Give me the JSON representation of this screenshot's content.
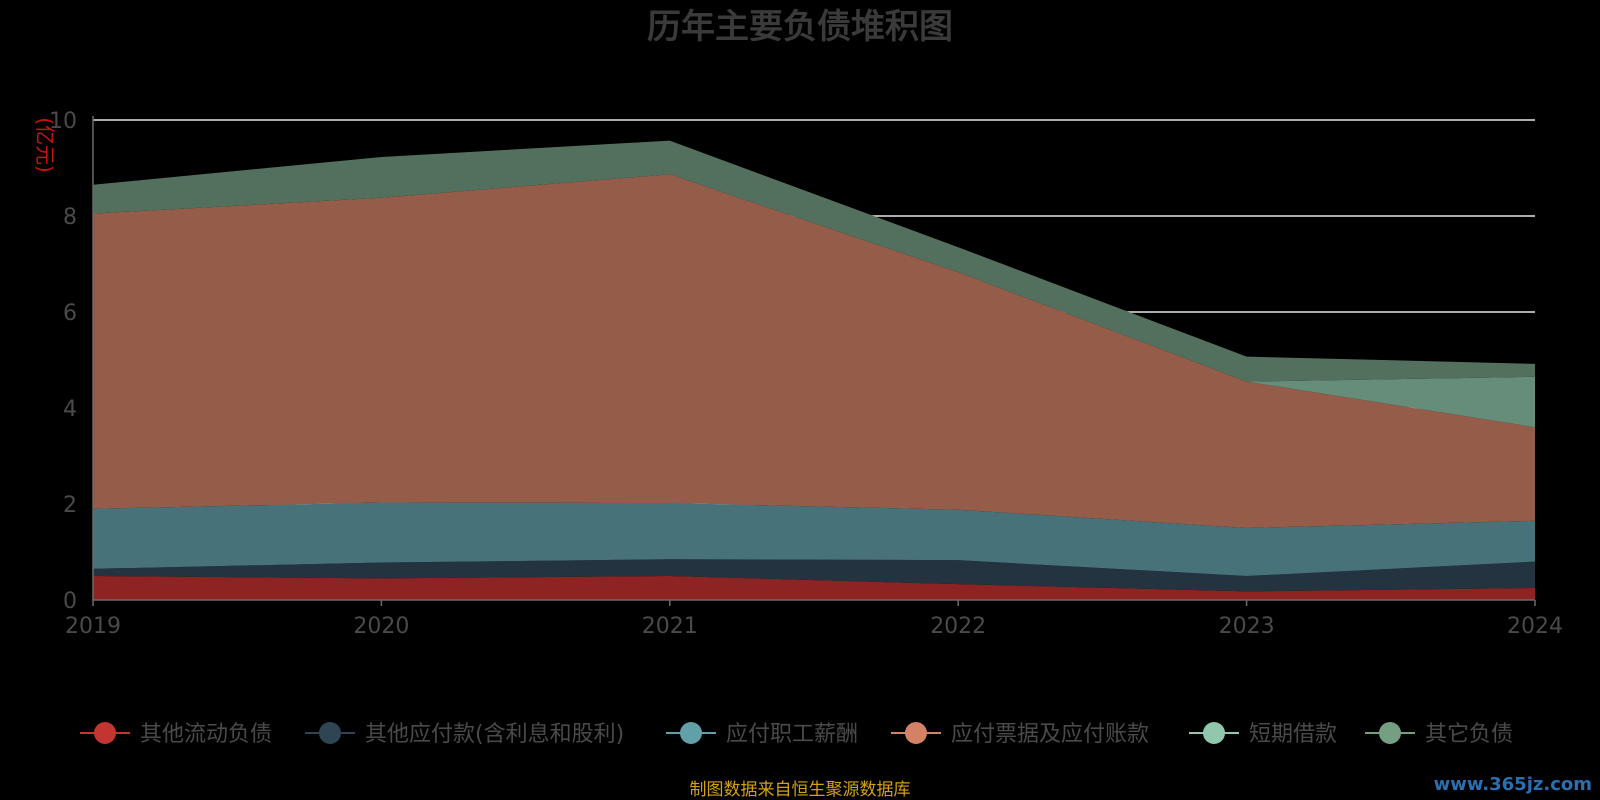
{
  "chart_data": {
    "type": "area",
    "stacked": true,
    "title": "历年主要负债堆积图",
    "unit_label": "(亿元)",
    "x": [
      "2019",
      "2020",
      "2021",
      "2022",
      "2023",
      "2024"
    ],
    "ylim": [
      0,
      10
    ],
    "yticks": [
      0,
      2,
      4,
      6,
      8,
      10
    ],
    "grid": true,
    "legend_position": "bottom",
    "series": [
      {
        "name": "其他流动负债",
        "color": "#c23531",
        "fill": "#8e2323",
        "values": [
          0.5,
          0.45,
          0.5,
          0.33,
          0.18,
          0.25
        ]
      },
      {
        "name": "其他应付款(含利息和股利)",
        "color": "#2f4554",
        "fill": "#243340",
        "values": [
          0.15,
          0.33,
          0.35,
          0.5,
          0.32,
          0.55
        ]
      },
      {
        "name": "应付职工薪酬",
        "color": "#61a0a8",
        "fill": "#477279",
        "values": [
          1.25,
          1.25,
          1.17,
          1.05,
          1.0,
          0.85
        ]
      },
      {
        "name": "应付票据及应付账款",
        "color": "#d48265",
        "fill": "#955c49",
        "values": [
          6.15,
          6.35,
          6.85,
          4.95,
          3.05,
          1.95
        ]
      },
      {
        "name": "短期借款",
        "color": "#91c7ae",
        "fill": "#658d7a",
        "values": [
          0.0,
          0.0,
          0.0,
          0.0,
          0.0,
          1.05
        ]
      },
      {
        "name": "其它负债",
        "color": "#749f83",
        "fill": "#52705d",
        "values": [
          0.6,
          0.85,
          0.7,
          0.52,
          0.52,
          0.27
        ]
      }
    ]
  },
  "footer": {
    "source": "制图数据来自恒生聚源数据库",
    "watermark": "www.365jz.com"
  }
}
